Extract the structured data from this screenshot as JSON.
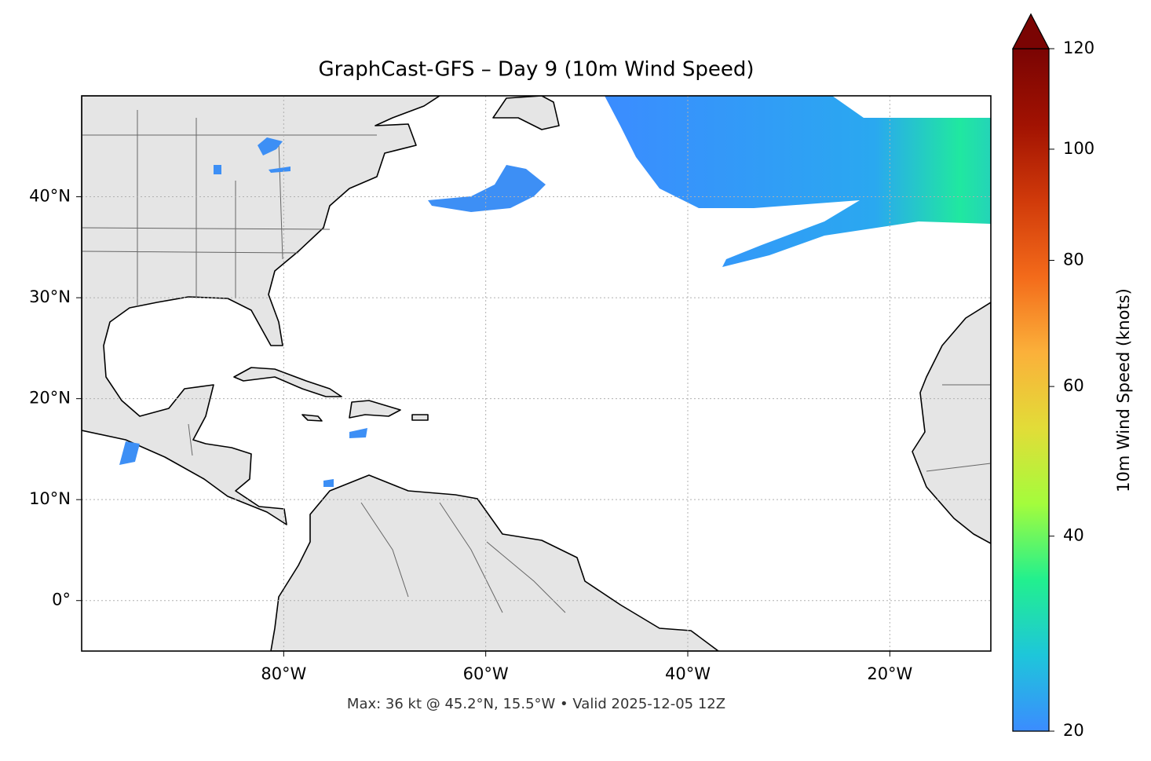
{
  "chart_data": {
    "type": "map",
    "title": "GraphCast-GFS – Day 9 (10m Wind Speed)",
    "xlim": [
      -100,
      -10
    ],
    "ylim": [
      -5,
      50
    ],
    "xticks": [
      {
        "value": -80,
        "label": "80°W"
      },
      {
        "value": -60,
        "label": "60°W"
      },
      {
        "value": -40,
        "label": "40°W"
      },
      {
        "value": -20,
        "label": "20°W"
      }
    ],
    "yticks": [
      {
        "value": 0,
        "label": "0°"
      },
      {
        "value": 10,
        "label": "10°N"
      },
      {
        "value": 20,
        "label": "20°N"
      },
      {
        "value": 30,
        "label": "30°N"
      },
      {
        "value": 40,
        "label": "40°N"
      }
    ],
    "grid": true,
    "colorbar": {
      "label": "10m Wind Speed (knots)",
      "lim": [
        20,
        120
      ],
      "ticks": [
        20,
        40,
        60,
        80,
        100,
        120
      ],
      "scale": "sqrt",
      "extend": "max",
      "colors": [
        "#3b8cff",
        "#1ec6da",
        "#22f08e",
        "#a4fc3c",
        "#e2dc38",
        "#fbb03a",
        "#f36a1a",
        "#d03a0a",
        "#a11202",
        "#7a0403"
      ]
    },
    "footer": "Max: 36 kt @ 45.2°N, 15.5°W • Valid 2025-12-05 12Z"
  }
}
